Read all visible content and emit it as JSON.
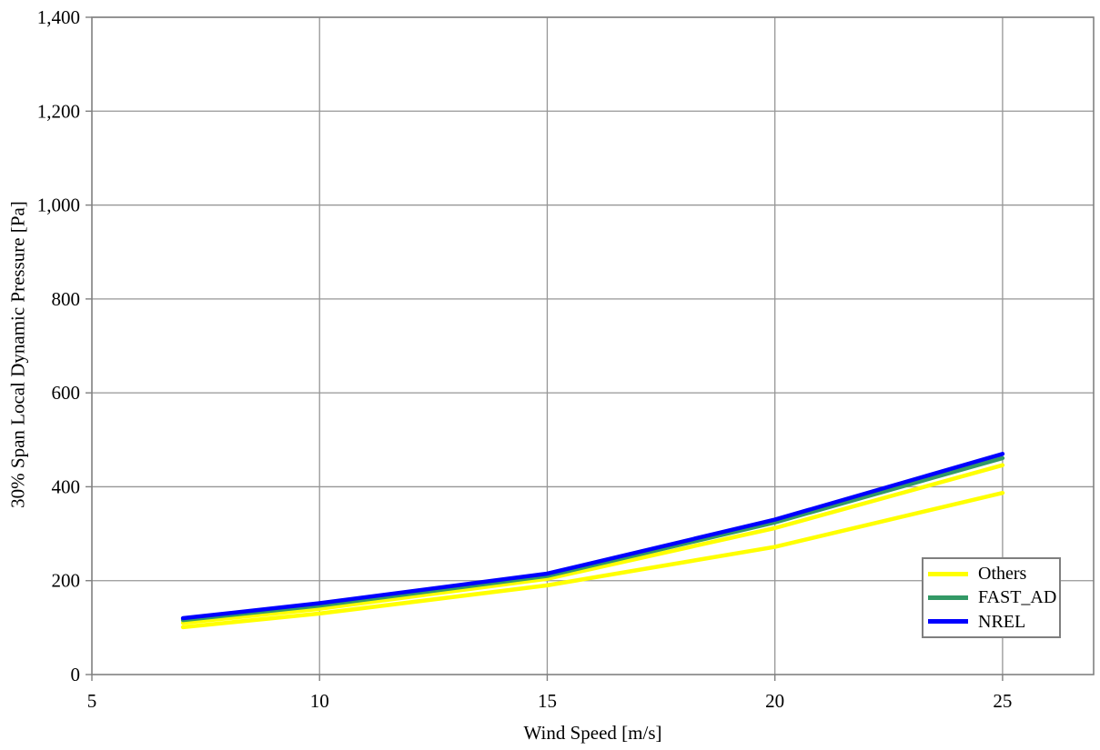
{
  "chart_data": {
    "type": "line",
    "title": "",
    "xlabel": "Wind Speed [m/s]",
    "ylabel": "30% Span Local Dynamic Pressure [Pa]",
    "xlim": [
      5,
      27
    ],
    "ylim": [
      0,
      1400
    ],
    "x_ticks": [
      5,
      10,
      15,
      20,
      25
    ],
    "x_tick_labels": [
      "5",
      "10",
      "15",
      "20",
      "25"
    ],
    "y_ticks": [
      0,
      200,
      400,
      600,
      800,
      1000,
      1200,
      1400
    ],
    "y_tick_labels": [
      "0",
      "200",
      "400",
      "600",
      "800",
      "1,000",
      "1,200",
      "1,400"
    ],
    "grid": true,
    "legend_position": "inside-bottom-right",
    "x": [
      7,
      10,
      15,
      20,
      25
    ],
    "series": [
      {
        "name": "Others",
        "color": "#FFFF00",
        "values": [
          110,
          140,
          204,
          312,
          446
        ]
      },
      {
        "name": "Others",
        "color": "#FFFF00",
        "values": [
          101,
          130,
          190,
          272,
          387
        ]
      },
      {
        "name": "FAST_AD",
        "color": "#339966",
        "values": [
          116,
          147,
          210,
          324,
          461
        ]
      },
      {
        "name": "NREL",
        "color": "#0000FF",
        "values": [
          120,
          152,
          215,
          330,
          470
        ]
      }
    ],
    "legend": [
      {
        "label": "Others",
        "color": "#FFFF00"
      },
      {
        "label": "FAST_AD",
        "color": "#339966"
      },
      {
        "label": "NREL",
        "color": "#0000FF"
      }
    ]
  },
  "colors": {
    "grid": "#969696",
    "axis": "#808080",
    "text": "#000000",
    "legend_border": "#7F7F7F",
    "background": "#FFFFFF"
  }
}
